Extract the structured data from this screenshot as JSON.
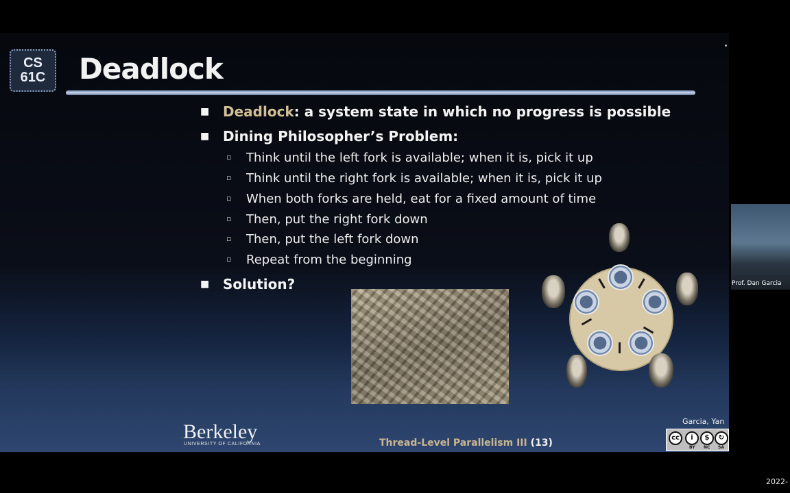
{
  "slide": {
    "logo_line1": "CS",
    "logo_line2": "61C",
    "title": "Deadlock",
    "bullets": [
      {
        "highlight": "Deadlock",
        "text": ": a system state in which no progress is possible"
      },
      {
        "text": "Dining Philosopher’s Problem:"
      },
      {
        "text": "Solution?"
      }
    ],
    "sub_bullets": [
      "Think until the left fork is available; when it is, pick it up",
      "Think until the right fork is available; when it is, pick it up",
      "When both forks are held, eat for a fixed amount of time",
      "Then, put the right fork down",
      "Then, put the left fork down",
      "Repeat from the beginning"
    ],
    "footer": {
      "university": "Berkeley",
      "university_sub": "UNIVERSITY OF CALIFORNIA",
      "lecture": "Thread-Level Parallelism III",
      "page": "(13)",
      "authors": "Garcia, Yan",
      "license": [
        "BY",
        "NC",
        "SA"
      ]
    }
  },
  "webcam": {
    "label": "Prof. Dan Garcia"
  },
  "timestamp": "2022-"
}
